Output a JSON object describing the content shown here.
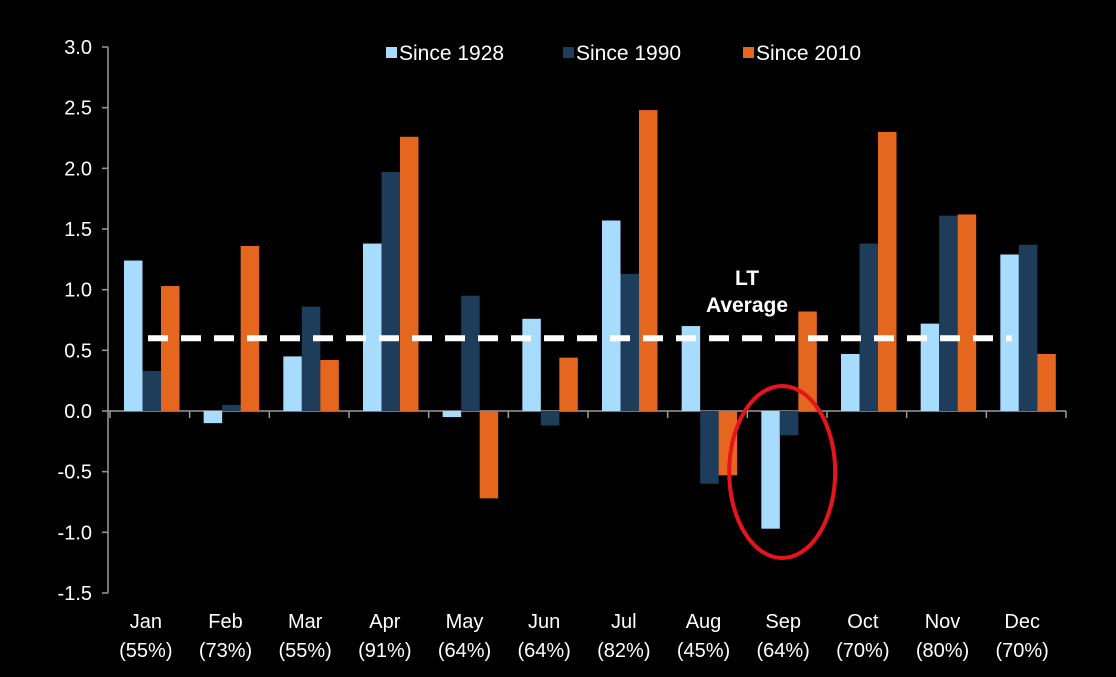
{
  "chart_data": {
    "type": "bar",
    "categories": [
      "Jan",
      "Feb",
      "Mar",
      "Apr",
      "May",
      "Jun",
      "Jul",
      "Aug",
      "Sep",
      "Oct",
      "Nov",
      "Dec"
    ],
    "category_sublabels": [
      "(55%)",
      "(73%)",
      "(55%)",
      "(91%)",
      "(64%)",
      "(64%)",
      "(82%)",
      "(45%)",
      "(64%)",
      "(70%)",
      "(80%)",
      "(70%)"
    ],
    "series": [
      {
        "name": "Since 1928",
        "color": "#a8dcff",
        "values": [
          1.24,
          -0.1,
          0.45,
          1.38,
          -0.05,
          0.76,
          1.57,
          0.7,
          -0.97,
          0.47,
          0.72,
          1.29
        ]
      },
      {
        "name": "Since 1990",
        "color": "#1d3d5a",
        "values": [
          0.33,
          0.05,
          0.86,
          1.97,
          0.95,
          -0.12,
          1.13,
          -0.6,
          -0.2,
          1.38,
          1.61,
          1.37
        ]
      },
      {
        "name": "Since 2010",
        "color": "#e4661f",
        "values": [
          1.03,
          1.36,
          0.42,
          2.26,
          -0.72,
          0.44,
          2.48,
          -0.53,
          0.82,
          2.3,
          1.62,
          0.47
        ]
      }
    ],
    "ylim": [
      -1.5,
      3.0
    ],
    "yticks": [
      "-1.5",
      "-1.0",
      "-0.5",
      "0.0",
      "0.5",
      "1.0",
      "1.5",
      "2.0",
      "2.5",
      "3.0"
    ],
    "reference_line": {
      "value": 0.6,
      "color": "#ffffff",
      "style": "dashed"
    },
    "annotation": {
      "line1": "LT",
      "line2": "Average"
    },
    "highlight": {
      "category": "Sep",
      "shape": "ellipse",
      "color": "#e8141c"
    },
    "legend_position": "top-center",
    "grid": false
  }
}
